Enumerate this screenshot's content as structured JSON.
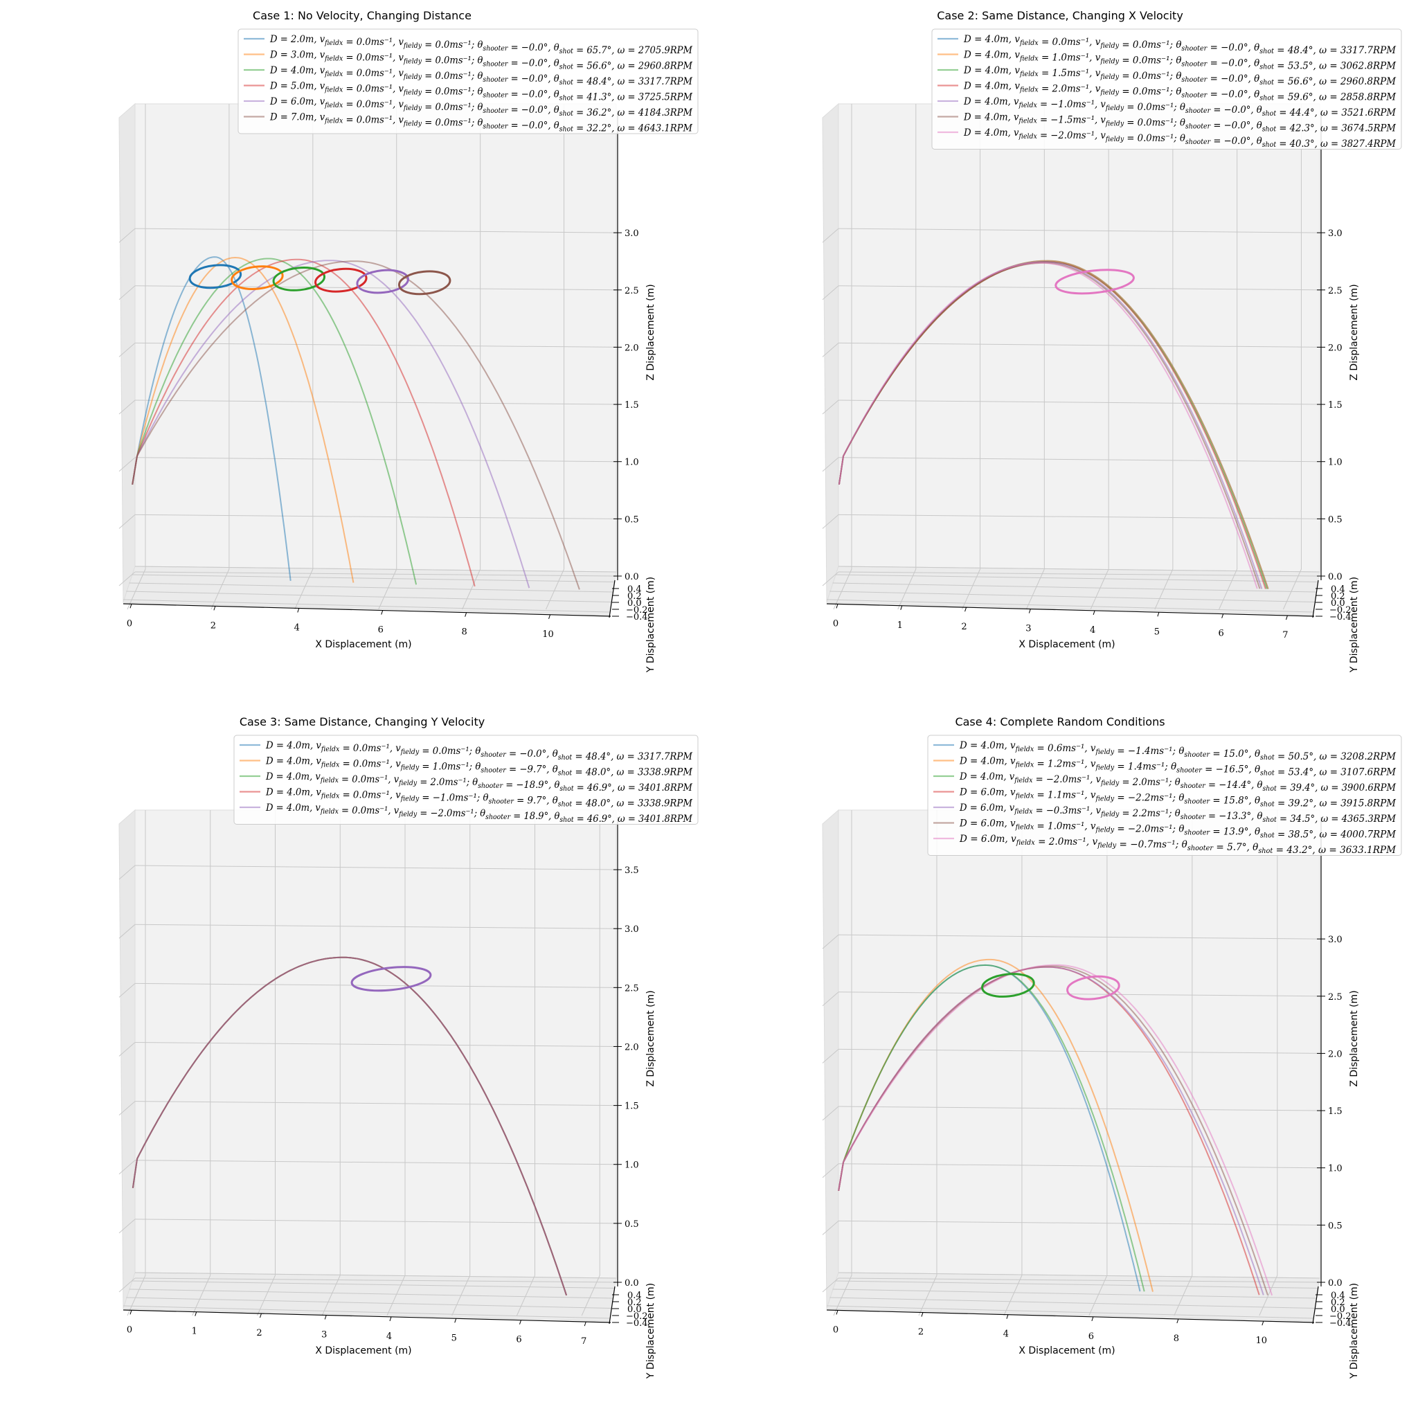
{
  "chart_data": [
    {
      "type": "line",
      "title": "Case 1: No Velocity, Changing Distance",
      "xlabel": "X Displacement (m)",
      "ylabel": "Y Displacement (m)",
      "zlabel": "Z Displacement (m)",
      "xlim": [
        0,
        11
      ],
      "zlim": [
        0,
        3.4
      ],
      "x_ticks": [
        "0",
        "2",
        "4",
        "6",
        "8",
        "10"
      ],
      "z_ticks": [
        "0.0",
        "0.5",
        "1.0",
        "1.5",
        "2.0",
        "2.5",
        "3.0"
      ],
      "y_ticks": [
        "0.4",
        "0.2",
        "0.0",
        "−0.2",
        "−0.4"
      ],
      "legend_position": "top-right",
      "target_z": 2.64,
      "target_radius": 0.61,
      "series": [
        {
          "label": "D = 2.0m, v_fieldx = 0.0ms⁻¹, v_fieldy = 0.0ms⁻¹; θ_shooter = −0.0°, θ_shot = 65.7°, ω = 2705.9RPM",
          "color": "#1f77b4",
          "x_land": 3.8,
          "apex_x": 2.0,
          "apex_z": 2.81,
          "target_x": 2.0,
          "show_target": true
        },
        {
          "label": "D = 3.0m, v_fieldx = 0.0ms⁻¹, v_fieldy = 0.0ms⁻¹; θ_shooter = −0.0°, θ_shot = 56.6°, ω = 2960.8RPM",
          "color": "#ff7f0e",
          "x_land": 5.3,
          "apex_x": 2.5,
          "apex_z": 2.81,
          "target_x": 3.0,
          "show_target": true
        },
        {
          "label": "D = 4.0m, v_fieldx = 0.0ms⁻¹, v_fieldy = 0.0ms⁻¹; θ_shooter = −0.0°, θ_shot = 48.4°, ω = 3317.7RPM",
          "color": "#2ca02c",
          "x_land": 6.8,
          "apex_x": 3.3,
          "apex_z": 2.81,
          "target_x": 4.0,
          "show_target": true
        },
        {
          "label": "D = 5.0m, v_fieldx = 0.0ms⁻¹, v_fieldy = 0.0ms⁻¹; θ_shooter = −0.0°, θ_shot = 41.3°, ω = 3725.5RPM",
          "color": "#d62728",
          "x_land": 8.2,
          "apex_x": 4.0,
          "apex_z": 2.81,
          "target_x": 5.0,
          "show_target": true
        },
        {
          "label": "D = 6.0m, v_fieldx = 0.0ms⁻¹, v_fieldy = 0.0ms⁻¹; θ_shooter = −0.0°, θ_shot = 36.2°, ω = 4184.3RPM",
          "color": "#9467bd",
          "x_land": 9.5,
          "apex_x": 4.8,
          "apex_z": 2.81,
          "target_x": 6.0,
          "show_target": true
        },
        {
          "label": "D = 7.0m, v_fieldx = 0.0ms⁻¹, v_fieldy = 0.0ms⁻¹; θ_shooter = −0.0°, θ_shot = 32.2°, ω = 4643.1RPM",
          "color": "#8c564b",
          "x_land": 10.7,
          "apex_x": 5.4,
          "apex_z": 2.81,
          "target_x": 7.0,
          "show_target": true
        }
      ]
    },
    {
      "type": "line",
      "title": "Case 2: Same Distance, Changing X Velocity",
      "xlabel": "X Displacement (m)",
      "ylabel": "Y Displacement (m)",
      "zlabel": "Z Displacement (m)",
      "xlim": [
        0,
        7.2
      ],
      "zlim": [
        0,
        3.4
      ],
      "x_ticks": [
        "0",
        "1",
        "2",
        "3",
        "4",
        "5",
        "6",
        "7"
      ],
      "z_ticks": [
        "0.0",
        "0.5",
        "1.0",
        "1.5",
        "2.0",
        "2.5",
        "3.0"
      ],
      "y_ticks": [
        "0.4",
        "0.2",
        "0.0",
        "−0.2",
        "−0.4"
      ],
      "legend_position": "top-right",
      "target_z": 2.64,
      "target_radius": 0.61,
      "series": [
        {
          "label": "D = 4.0m, v_fieldx = 0.0ms⁻¹, v_fieldy = 0.0ms⁻¹; θ_shooter = −0.0°, θ_shot = 48.4°, ω = 3317.7RPM",
          "color": "#1f77b4",
          "x_land": 6.7,
          "apex_x": 3.3,
          "apex_z": 2.81,
          "target_x": 4.0,
          "show_target": false
        },
        {
          "label": "D = 4.0m, v_fieldx = 1.0ms⁻¹, v_fieldy = 0.0ms⁻¹; θ_shooter = −0.0°, θ_shot = 53.5°, ω = 3062.8RPM",
          "color": "#ff7f0e",
          "x_land": 6.7,
          "apex_x": 3.3,
          "apex_z": 2.81,
          "target_x": 4.0,
          "show_target": false
        },
        {
          "label": "D = 4.0m, v_fieldx = 1.5ms⁻¹, v_fieldy = 0.0ms⁻¹; θ_shooter = −0.0°, θ_shot = 56.6°, ω = 2960.8RPM",
          "color": "#2ca02c",
          "x_land": 6.68,
          "apex_x": 3.3,
          "apex_z": 2.8,
          "target_x": 4.0,
          "show_target": false
        },
        {
          "label": "D = 4.0m, v_fieldx = 2.0ms⁻¹, v_fieldy = 0.0ms⁻¹; θ_shooter = −0.0°, θ_shot = 59.6°, ω = 2858.8RPM",
          "color": "#d62728",
          "x_land": 6.66,
          "apex_x": 3.3,
          "apex_z": 2.8,
          "target_x": 4.0,
          "show_target": false
        },
        {
          "label": "D = 4.0m, v_fieldx = −1.0ms⁻¹, v_fieldy = 0.0ms⁻¹; θ_shooter = −0.0°, θ_shot = 44.4°, ω = 3521.6RPM",
          "color": "#9467bd",
          "x_land": 6.6,
          "apex_x": 3.25,
          "apex_z": 2.8,
          "target_x": 4.0,
          "show_target": false
        },
        {
          "label": "D = 4.0m, v_fieldx = −1.5ms⁻¹, v_fieldy = 0.0ms⁻¹; θ_shooter = −0.0°, θ_shot = 42.3°, ω = 3674.5RPM",
          "color": "#8c564b",
          "x_land": 6.57,
          "apex_x": 3.25,
          "apex_z": 2.79,
          "target_x": 4.0,
          "show_target": false
        },
        {
          "label": "D = 4.0m, v_fieldx = −2.0ms⁻¹, v_fieldy = 0.0ms⁻¹; θ_shooter = −0.0°, θ_shot = 40.3°, ω = 3827.4RPM",
          "color": "#e377c2",
          "x_land": 6.53,
          "apex_x": 3.2,
          "apex_z": 2.79,
          "target_x": 4.0,
          "show_target": true
        }
      ]
    },
    {
      "type": "line",
      "title": "Case 3: Same Distance, Changing Y Velocity",
      "xlabel": "X Displacement (m)",
      "ylabel": "Y Displacement (m)",
      "zlabel": "Z Displacement (m)",
      "xlim": [
        0,
        7.2
      ],
      "zlim": [
        0,
        3.7
      ],
      "x_ticks": [
        "0",
        "1",
        "2",
        "3",
        "4",
        "5",
        "6",
        "7"
      ],
      "z_ticks": [
        "0.0",
        "0.5",
        "1.0",
        "1.5",
        "2.0",
        "2.5",
        "3.0",
        "3.5"
      ],
      "y_ticks": [
        "0.4",
        "0.2",
        "0.0",
        "−0.2",
        "−0.4"
      ],
      "legend_position": "top-right",
      "target_z": 2.64,
      "target_radius": 0.61,
      "series": [
        {
          "label": "D = 4.0m, v_fieldx = 0.0ms⁻¹, v_fieldy = 0.0ms⁻¹; θ_shooter = −0.0°, θ_shot = 48.4°, ω = 3317.7RPM",
          "color": "#1f77b4",
          "x_land": 6.7,
          "apex_x": 3.3,
          "apex_z": 2.81,
          "target_x": 4.0,
          "show_target": false
        },
        {
          "label": "D = 4.0m, v_fieldx = 0.0ms⁻¹, v_fieldy = 1.0ms⁻¹; θ_shooter = −9.7°, θ_shot = 48.0°, ω = 3338.9RPM",
          "color": "#ff7f0e",
          "x_land": 6.7,
          "apex_x": 3.3,
          "apex_z": 2.81,
          "target_x": 4.0,
          "show_target": false
        },
        {
          "label": "D = 4.0m, v_fieldx = 0.0ms⁻¹, v_fieldy = 2.0ms⁻¹; θ_shooter = −18.9°, θ_shot = 46.9°, ω = 3401.8RPM",
          "color": "#2ca02c",
          "x_land": 6.7,
          "apex_x": 3.3,
          "apex_z": 2.81,
          "target_x": 4.0,
          "show_target": false
        },
        {
          "label": "D = 4.0m, v_fieldx = 0.0ms⁻¹, v_fieldy = −1.0ms⁻¹; θ_shooter = 9.7°, θ_shot = 48.0°, ω = 3338.9RPM",
          "color": "#d62728",
          "x_land": 6.7,
          "apex_x": 3.3,
          "apex_z": 2.81,
          "target_x": 4.0,
          "show_target": false
        },
        {
          "label": "D = 4.0m, v_fieldx = 0.0ms⁻¹, v_fieldy = −2.0ms⁻¹; θ_shooter = 18.9°, θ_shot = 46.9°, ω = 3401.8RPM",
          "color": "#9467bd",
          "x_land": 6.7,
          "apex_x": 3.3,
          "apex_z": 2.81,
          "target_x": 4.0,
          "show_target": true
        }
      ]
    },
    {
      "type": "line",
      "title": "Case 4: Complete Random Conditions",
      "xlabel": "X Displacement (m)",
      "ylabel": "Y Displacement (m)",
      "zlabel": "Z Displacement (m)",
      "xlim": [
        0,
        10.8
      ],
      "zlim": [
        0,
        3.4
      ],
      "x_ticks": [
        "0",
        "2",
        "4",
        "6",
        "8",
        "10"
      ],
      "z_ticks": [
        "0.0",
        "0.5",
        "1.0",
        "1.5",
        "2.0",
        "2.5",
        "3.0"
      ],
      "y_ticks": [
        "0.4",
        "0.2",
        "0.0",
        "−0.2",
        "−0.4"
      ],
      "legend_position": "top-right",
      "target_z": 2.64,
      "target_radius": 0.61,
      "series": [
        {
          "label": "D = 4.0m, v_fieldx = 0.6ms⁻¹, v_fieldy = −1.4ms⁻¹; θ_shooter = 15.0°, θ_shot = 50.5°, ω = 3208.2RPM",
          "color": "#1f77b4",
          "x_land": 7.1,
          "apex_x": 3.5,
          "apex_z": 2.81,
          "target_x": 4.0,
          "show_target": false
        },
        {
          "label": "D = 4.0m, v_fieldx = 1.2ms⁻¹, v_fieldy = 1.4ms⁻¹; θ_shooter = −16.5°, θ_shot = 53.4°, ω = 3107.6RPM",
          "color": "#ff7f0e",
          "x_land": 7.4,
          "apex_x": 3.6,
          "apex_z": 2.86,
          "target_x": 4.0,
          "show_target": false
        },
        {
          "label": "D = 4.0m, v_fieldx = −2.0ms⁻¹, v_fieldy = 2.0ms⁻¹; θ_shooter = −14.4°, θ_shot = 39.4°, ω = 3900.6RPM",
          "color": "#2ca02c",
          "x_land": 7.2,
          "apex_x": 3.5,
          "apex_z": 2.81,
          "target_x": 4.0,
          "show_target": true
        },
        {
          "label": "D = 6.0m, v_fieldx = 1.1ms⁻¹, v_fieldy = −2.2ms⁻¹; θ_shooter = 15.8°, θ_shot = 39.2°, ω = 3915.8RPM",
          "color": "#d62728",
          "x_land": 9.9,
          "apex_x": 5.0,
          "apex_z": 2.81,
          "target_x": 6.0,
          "show_target": false
        },
        {
          "label": "D = 6.0m, v_fieldx = −0.3ms⁻¹, v_fieldy = 2.2ms⁻¹; θ_shooter = −13.3°, θ_shot = 34.5°, ω = 4365.3RPM",
          "color": "#9467bd",
          "x_land": 10.0,
          "apex_x": 5.0,
          "apex_z": 2.81,
          "target_x": 6.0,
          "show_target": false
        },
        {
          "label": "D = 6.0m, v_fieldx = 1.0ms⁻¹, v_fieldy = −2.0ms⁻¹; θ_shooter = 13.9°, θ_shot = 38.5°, ω = 4000.7RPM",
          "color": "#8c564b",
          "x_land": 10.1,
          "apex_x": 5.1,
          "apex_z": 2.82,
          "target_x": 6.0,
          "show_target": false
        },
        {
          "label": "D = 6.0m, v_fieldx = 2.0ms⁻¹, v_fieldy = −0.7ms⁻¹; θ_shooter = 5.7°, θ_shot = 43.2°, ω = 3633.1RPM",
          "color": "#e377c2",
          "x_land": 10.2,
          "apex_x": 5.2,
          "apex_z": 2.83,
          "target_x": 6.0,
          "show_target": true
        }
      ]
    }
  ]
}
